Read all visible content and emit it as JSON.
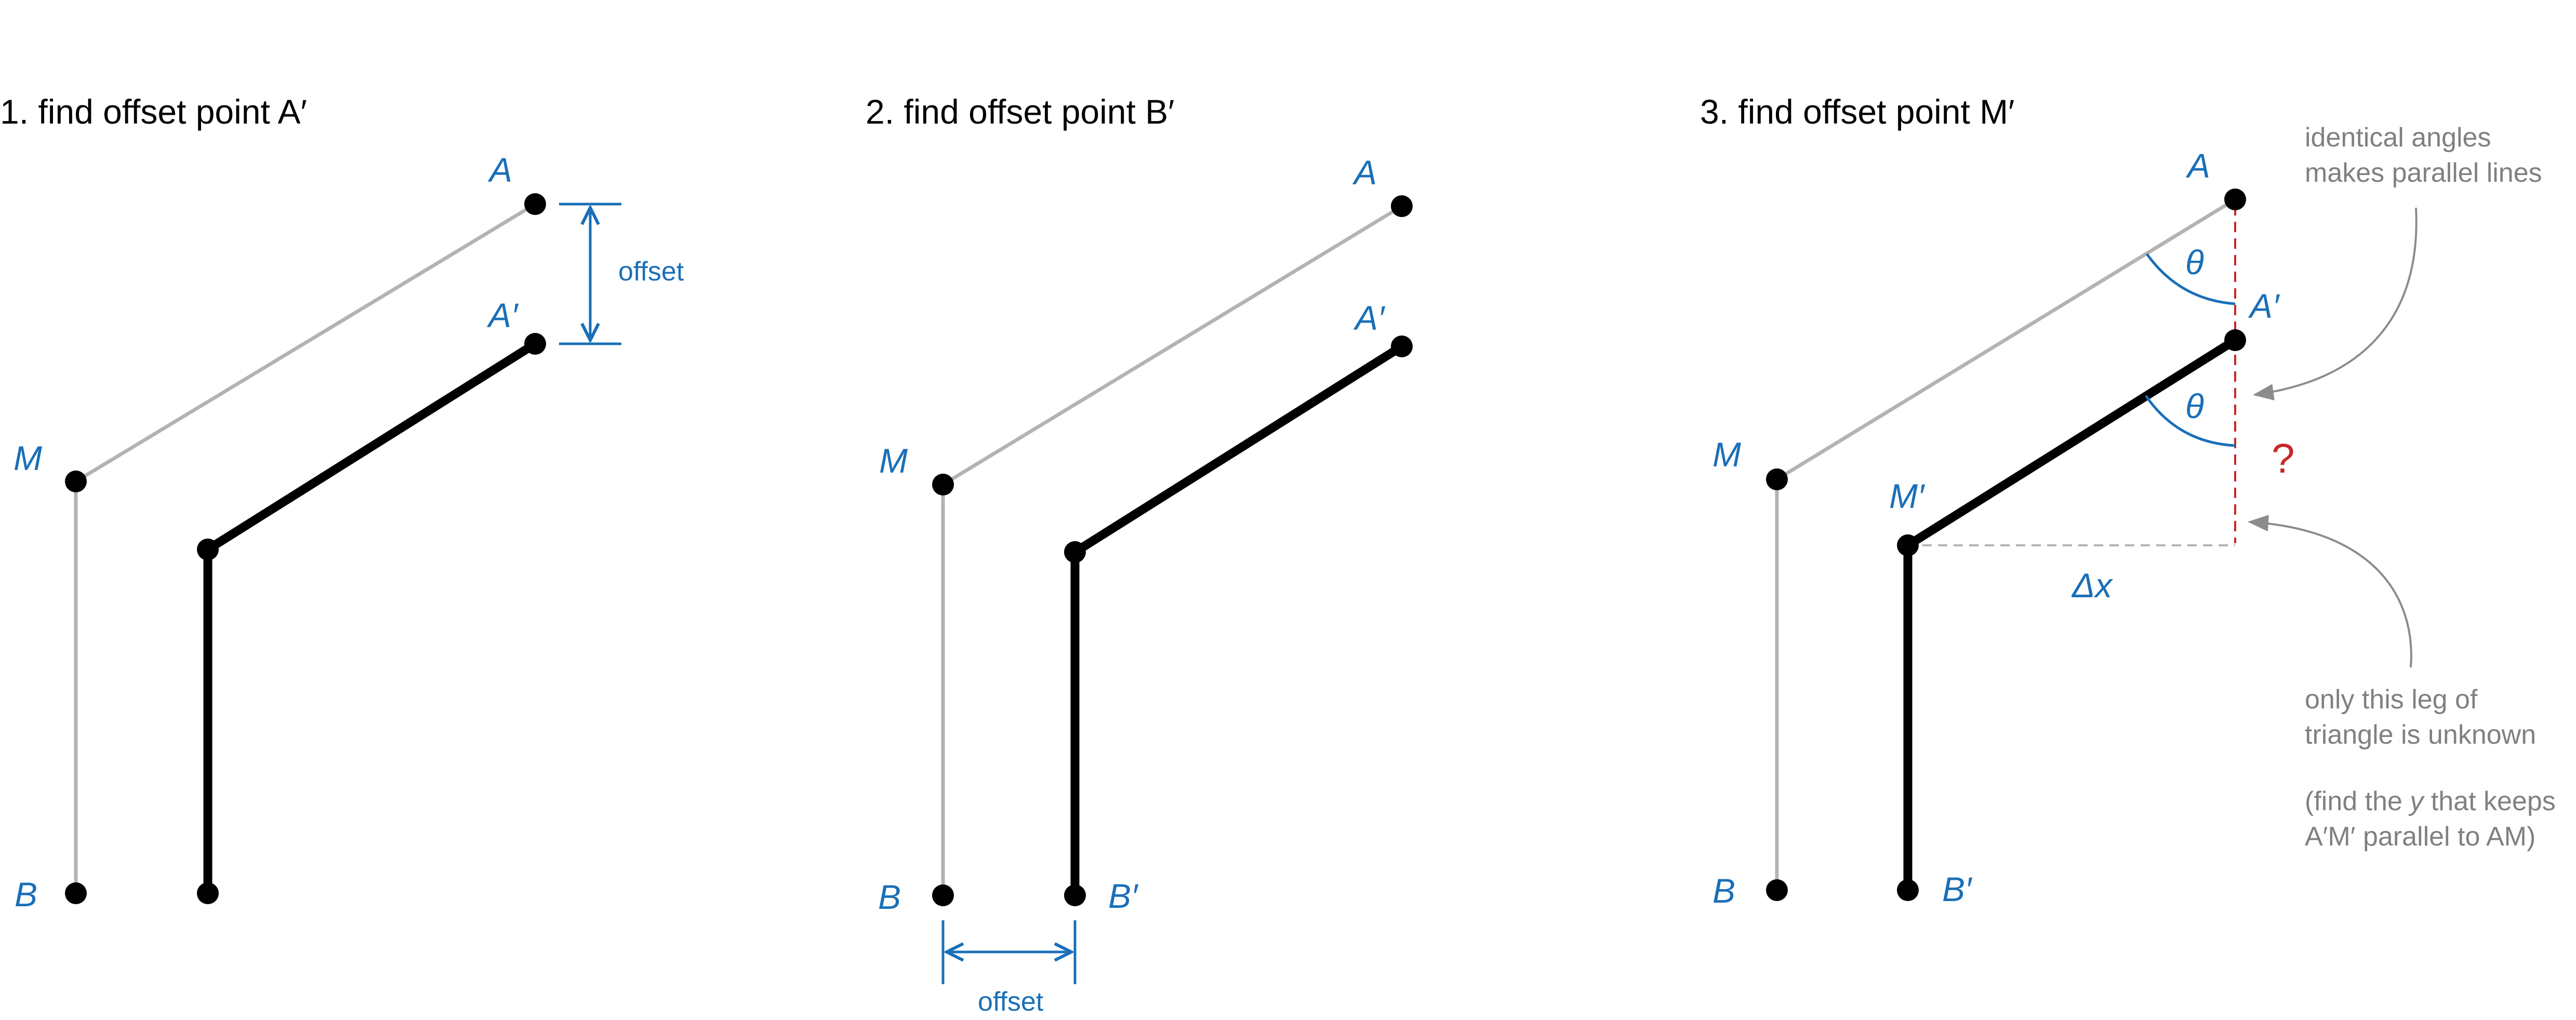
{
  "panels": [
    {
      "title": "1. find offset point A′",
      "labels": {
        "A": "A",
        "A2": "A′",
        "M": "M",
        "B": "B"
      },
      "offset_label": "offset"
    },
    {
      "title": "2. find offset point B′",
      "labels": {
        "A": "A",
        "A2": "A′",
        "M": "M",
        "B": "B",
        "B2": "B′"
      },
      "offset_label": "offset"
    },
    {
      "title": "3. find offset point M′",
      "labels": {
        "A": "A",
        "A2": "A′",
        "M": "M",
        "M2": "M′",
        "B": "B",
        "B2": "B′"
      },
      "theta": "θ",
      "delta_x": "Δx",
      "question": "?",
      "note_angles": [
        "identical angles",
        "makes parallel lines"
      ],
      "note_leg": [
        "only this leg of",
        "triangle is unknown"
      ],
      "note_find": [
        "(find the ",
        "y",
        " that keeps",
        "A′M′ parallel to AM)"
      ]
    }
  ],
  "colors": {
    "accent": "#1a6fb8",
    "gray": "#b3b3b3",
    "black": "#000000",
    "red": "#c62828",
    "annotation": "#808080"
  }
}
